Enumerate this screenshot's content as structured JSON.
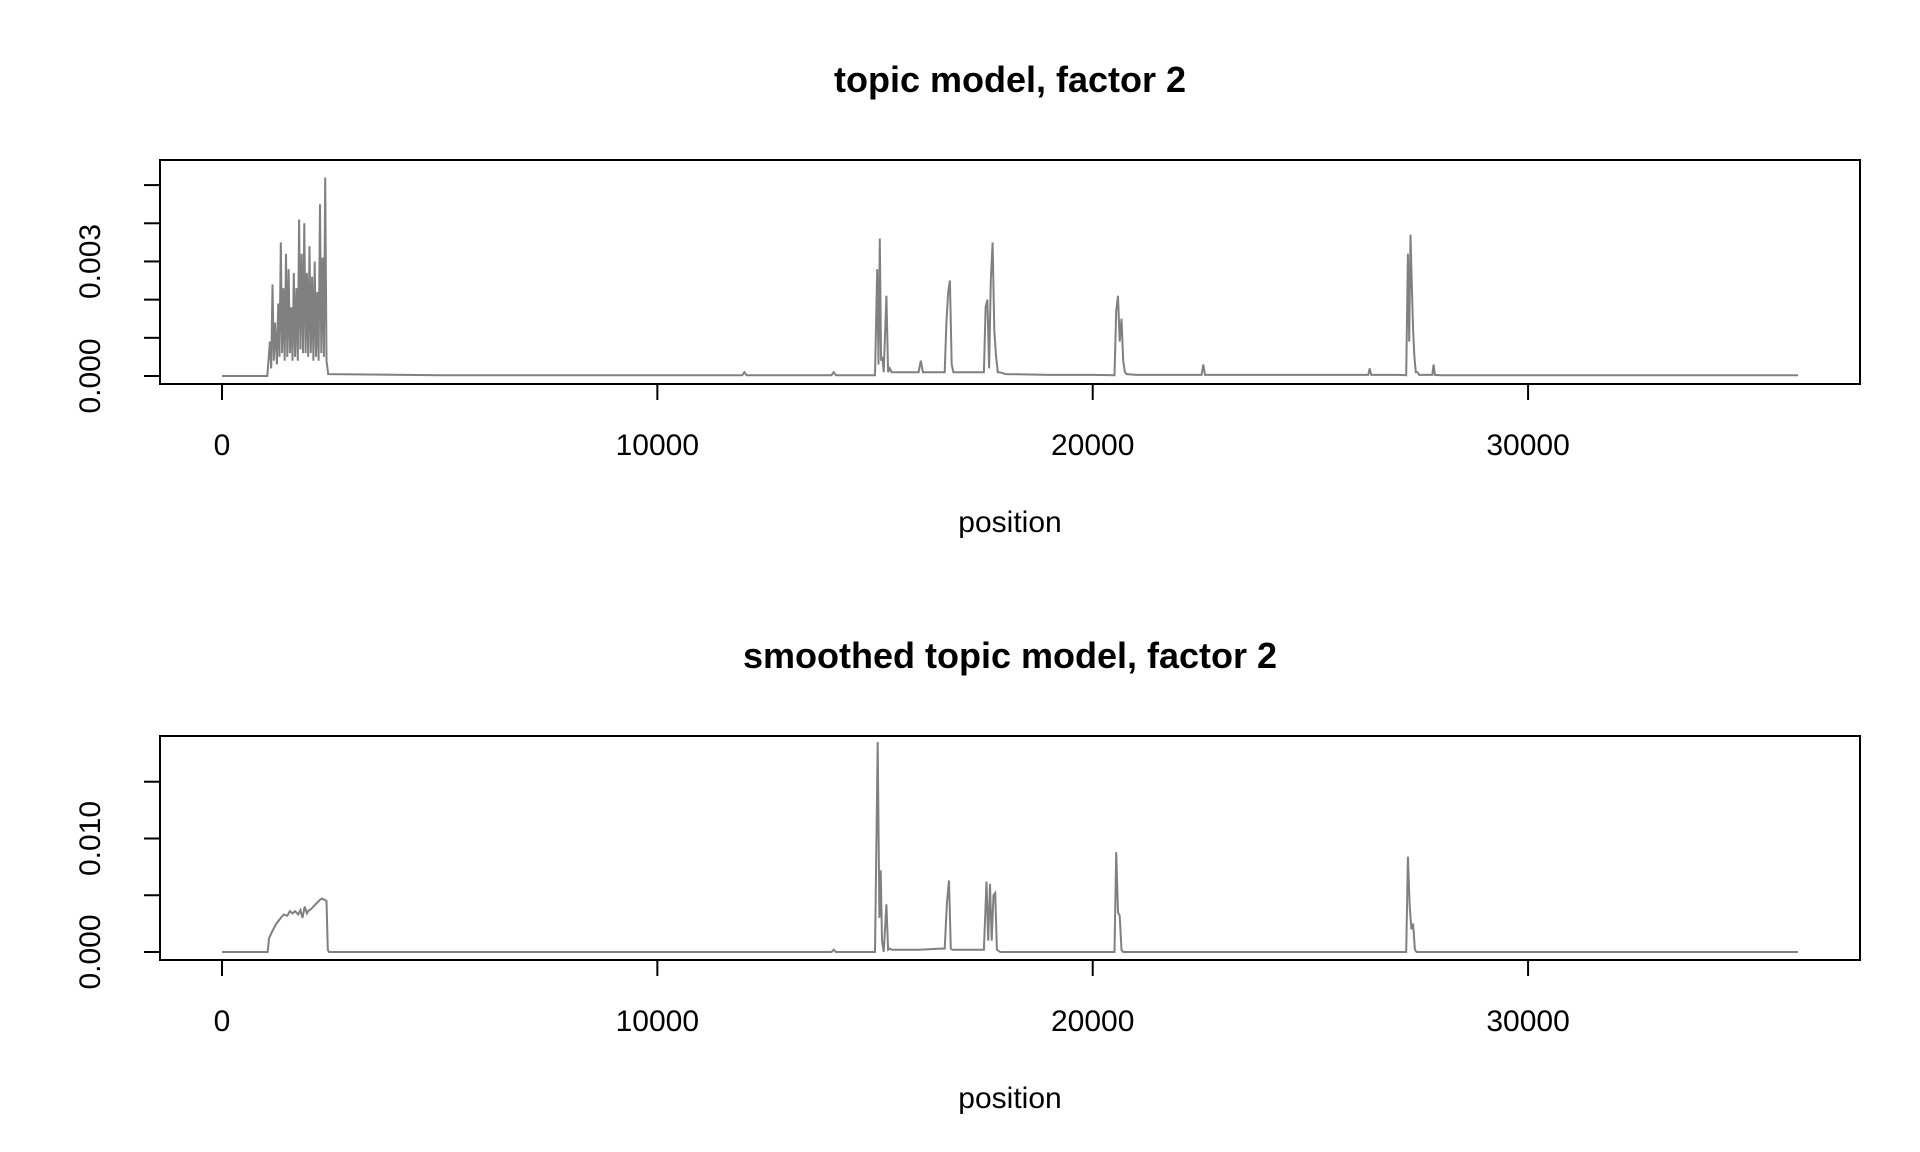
{
  "chart_data": [
    {
      "type": "line",
      "title": "topic model, factor 2",
      "xlabel": "position",
      "ylabel": "",
      "xlim": [
        0,
        36200
      ],
      "ylim": [
        0,
        0.0055
      ],
      "x_ticks": [
        0,
        10000,
        20000,
        30000
      ],
      "x_tick_labels": [
        "0",
        "10000",
        "20000",
        "30000"
      ],
      "y_ticks": [
        0,
        0.001,
        0.002,
        0.003,
        0.004,
        0.005
      ],
      "y_tick_labels": [
        "0.000",
        "",
        "",
        "0.003",
        "",
        ""
      ],
      "grid": false,
      "legend": "none",
      "line_color": "#808080",
      "series": [
        {
          "x": [
            0,
            1040,
            1100,
            1130,
            1160,
            1190,
            1220,
            1260,
            1290,
            1320,
            1350,
            1380,
            1410,
            1440,
            1470,
            1500,
            1530,
            1560,
            1590,
            1620,
            1650,
            1680,
            1710,
            1740,
            1770,
            1800,
            1830,
            1860,
            1890,
            1920,
            1950,
            1980,
            2010,
            2040,
            2070,
            2100,
            2130,
            2160,
            2190,
            2220,
            2250,
            2280,
            2310,
            2340,
            2370,
            2400,
            2440,
            5000,
            10000,
            11950,
            12000,
            12050,
            14000,
            14050,
            14100,
            15000,
            15050,
            15080,
            15110,
            15140,
            15170,
            15200,
            15260,
            15300,
            15340,
            15380,
            15420,
            15500,
            16000,
            16050,
            16100,
            16600,
            16640,
            16680,
            16720,
            16760,
            16800,
            17000,
            17500,
            17540,
            17580,
            17620,
            17660,
            17700,
            17740,
            17780,
            17820,
            17860,
            18000,
            19000,
            20000,
            20500,
            20540,
            20580,
            20620,
            20660,
            20700,
            20740,
            20780,
            21000,
            22000,
            22500,
            22540,
            22580,
            26000,
            26330,
            26360,
            26400,
            27000,
            27200,
            27240,
            27270,
            27300,
            27330,
            27360,
            27390,
            27420,
            27460,
            27500,
            27800,
            27830,
            27860,
            28000,
            30000,
            36200
          ],
          "y": [
            0,
            0,
            0.0009,
            0.0002,
            0.0024,
            0.0004,
            0.0014,
            0.0003,
            0.0019,
            0.0005,
            0.0035,
            0.0006,
            0.0023,
            0.0004,
            0.0032,
            0.0005,
            0.0028,
            0.0006,
            0.0018,
            0.0004,
            0.0027,
            0.0005,
            0.0023,
            0.0004,
            0.0041,
            0.0007,
            0.0032,
            0.0006,
            0.004,
            0.0006,
            0.0027,
            0.0005,
            0.0034,
            0.0006,
            0.0026,
            0.0004,
            0.003,
            0.0005,
            0.0022,
            0.0004,
            0.0045,
            0.0006,
            0.0031,
            0.0005,
            0.0052,
            0.0004,
            5e-05,
            2e-05,
            2e-05,
            2e-05,
            0.0001,
            2e-05,
            2e-05,
            0.0001,
            2e-05,
            2e-05,
            0.0028,
            0.0003,
            0.0036,
            0.0004,
            0.0005,
            0.0001,
            0.0021,
            0.0001,
            0.0002,
            0.0001,
            0.0001,
            0.0001,
            0.0001,
            0.0004,
            0.0001,
            0.0001,
            0.0014,
            0.0022,
            0.0025,
            0.0003,
            0.0001,
            0.0001,
            0.0001,
            0.0018,
            0.002,
            0.0002,
            0.0025,
            0.0035,
            0.0012,
            0.0005,
            0.0001,
            0.0001,
            5e-05,
            3e-05,
            3e-05,
            2e-05,
            0.0017,
            0.0021,
            0.0009,
            0.0015,
            0.0004,
            0.0001,
            5e-05,
            3e-05,
            3e-05,
            3e-05,
            0.0003,
            3e-05,
            3e-05,
            3e-05,
            0.0002,
            3e-05,
            3e-05,
            2e-05,
            0.0032,
            0.0009,
            0.0037,
            0.0024,
            0.0012,
            0.0005,
            0.0001,
            0.0001,
            3e-05,
            3e-05,
            0.0003,
            3e-05,
            2e-05,
            2e-05,
            2e-05
          ]
        }
      ]
    },
    {
      "type": "line",
      "title": "smoothed topic model, factor 2",
      "xlabel": "position",
      "ylabel": "",
      "xlim": [
        0,
        36200
      ],
      "ylim": [
        0,
        0.0185
      ],
      "x_ticks": [
        0,
        10000,
        20000,
        30000
      ],
      "x_tick_labels": [
        "0",
        "10000",
        "20000",
        "30000"
      ],
      "y_ticks": [
        0,
        0.005,
        0.01,
        0.015
      ],
      "y_tick_labels": [
        "0.000",
        "",
        "0.010",
        ""
      ],
      "grid": false,
      "legend": "none",
      "line_color": "#808080",
      "series": [
        {
          "x": [
            0,
            1050,
            1080,
            1150,
            1250,
            1350,
            1420,
            1500,
            1560,
            1620,
            1680,
            1750,
            1800,
            1850,
            1900,
            1950,
            1980,
            2050,
            2100,
            2150,
            2200,
            2250,
            2300,
            2350,
            2400,
            2430,
            2460,
            5000,
            10000,
            14000,
            14050,
            14100,
            15000,
            15060,
            15100,
            15130,
            15160,
            15200,
            15260,
            15300,
            15340,
            15380,
            15500,
            16000,
            16500,
            16600,
            16650,
            16700,
            16740,
            16780,
            17500,
            17560,
            17600,
            17640,
            17680,
            17720,
            17760,
            17800,
            17840,
            17880,
            20500,
            20540,
            20580,
            20620,
            20660,
            20700,
            20760,
            27200,
            27240,
            27280,
            27320,
            27360,
            27400,
            27440,
            27480,
            30000,
            36200
          ],
          "y": [
            0,
            0,
            0.0012,
            0.0018,
            0.0025,
            0.003,
            0.0033,
            0.0032,
            0.0036,
            0.0034,
            0.0036,
            0.0033,
            0.0037,
            0.003,
            0.004,
            0.0034,
            0.0036,
            0.0038,
            0.004,
            0.0042,
            0.0044,
            0.0046,
            0.0047,
            0.0046,
            0.0045,
            0.0002,
            0,
            0,
            0,
            0,
            0.0002,
            0,
            0,
            0.0185,
            0.003,
            0.0072,
            0.001,
            0,
            0.0042,
            0.0002,
            0.0003,
            0.0002,
            0.0002,
            0.0002,
            0.0003,
            0.0003,
            0.0043,
            0.0063,
            0.0003,
            0.0002,
            0.0002,
            0.0062,
            0.001,
            0.006,
            0.001,
            0.005,
            0.0052,
            0.0002,
            0.0001,
            0,
            0,
            0.0088,
            0.0035,
            0.0032,
            0.0002,
            0,
            0,
            0,
            0.0084,
            0.004,
            0.002,
            0.0025,
            0.0002,
            0,
            0,
            0,
            0
          ]
        }
      ]
    }
  ]
}
